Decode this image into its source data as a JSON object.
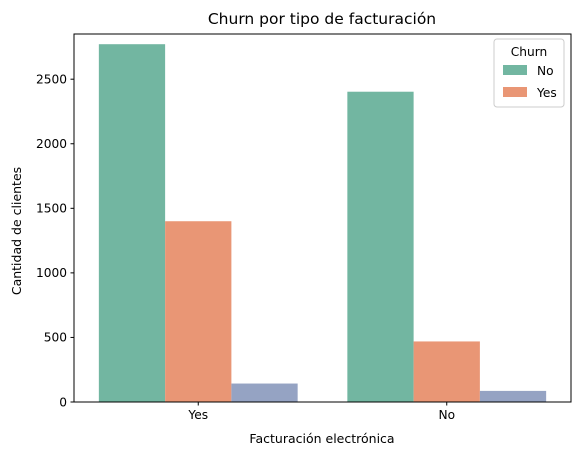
{
  "chart_data": {
    "type": "bar",
    "title": "Churn por tipo de facturación",
    "xlabel": "Facturación electrónica",
    "ylabel": "Cantidad de clientes",
    "categories": [
      "Yes",
      "No"
    ],
    "ylim": [
      0,
      2850
    ],
    "yticks": [
      0,
      500,
      1000,
      1500,
      2000,
      2500
    ],
    "grid": false,
    "legend": {
      "title": "Churn",
      "placement": "top-right"
    },
    "series": [
      {
        "name": "No",
        "color": "#72b6a1",
        "values": [
          2771,
          2403
        ]
      },
      {
        "name": "Yes",
        "color": "#e99675",
        "values": [
          1400,
          469
        ]
      },
      {
        "color": "#95a3c3",
        "values": [
          143,
          86
        ]
      }
    ]
  }
}
